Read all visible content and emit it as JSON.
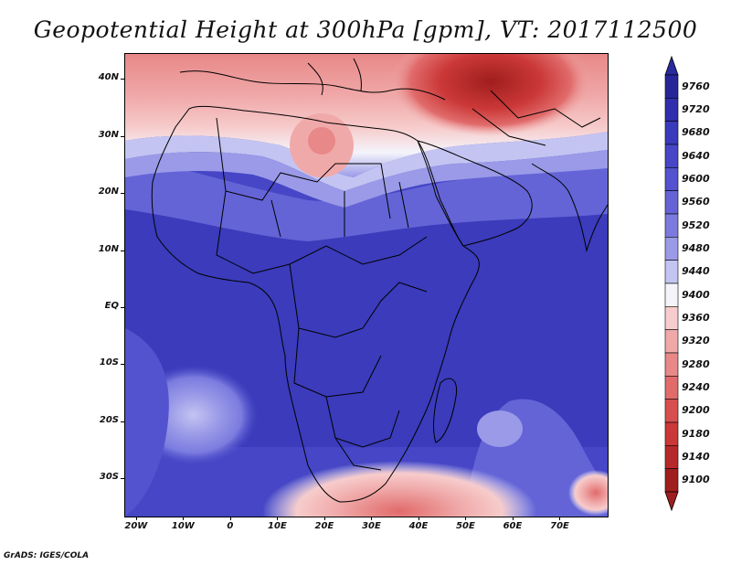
{
  "title": "Geopotential Height at 300hPa [gpm], VT: 2017112500",
  "credit": "GrADS: IGES/COLA",
  "map": {
    "latitude_labels": [
      "40N",
      "30N",
      "20N",
      "10N",
      "EQ",
      "10S",
      "20S",
      "30S"
    ],
    "longitude_labels": [
      "20W",
      "10W",
      "0",
      "10E",
      "20E",
      "30E",
      "40E",
      "50E",
      "60E",
      "70E"
    ],
    "lat_values": [
      40,
      30,
      20,
      10,
      0,
      -10,
      -20,
      -30
    ],
    "lon_values": [
      -20,
      -10,
      0,
      10,
      20,
      30,
      40,
      50,
      60,
      70
    ]
  },
  "legend": {
    "levels": [
      "9760",
      "9720",
      "9680",
      "9640",
      "9600",
      "9560",
      "9520",
      "9480",
      "9440",
      "9400",
      "9360",
      "9320",
      "9280",
      "9240",
      "9200",
      "9180",
      "9140",
      "9100"
    ],
    "colors": [
      "#262699",
      "#2f2fad",
      "#3a3abc",
      "#4646c6",
      "#5353cf",
      "#6464d7",
      "#7b7bdf",
      "#9a9ae8",
      "#c4c4f2",
      "#f4f4fb",
      "#f7cccc",
      "#f0a9a9",
      "#e88888",
      "#e16b6b",
      "#d84f4f",
      "#cb3838",
      "#b72a2a",
      "#a01e1e"
    ],
    "top_arrow_color": "#2a2a9f",
    "bottom_arrow_color": "#9e1f1f"
  },
  "colors": {
    "ocean_base": "#4c4cc6",
    "deep_blue": "#3b3bbb",
    "light_blue": "#9a9ae8",
    "white_band": "#f4f4fb",
    "pink": "#f0a9a9",
    "red": "#c83535",
    "dark_red": "#a01e1e"
  }
}
